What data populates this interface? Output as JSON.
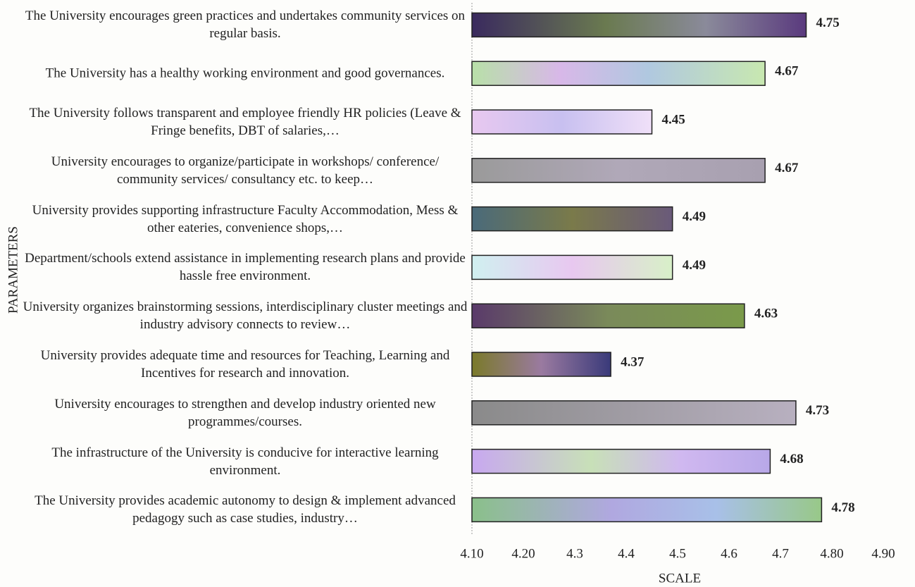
{
  "chart_data": {
    "type": "bar",
    "orientation": "horizontal",
    "x_label": "SCALE",
    "y_label": "PARAMETERS",
    "categories": [
      "The University encourages green practices and undertakes community services on regular basis.",
      "The University has a healthy working environment and good governances.",
      "The University follows transparent and employee friendly HR policies (Leave & Fringe benefits, DBT of salaries,…",
      "University encourages to organize/participate in workshops/ conference/ community services/ consultancy etc. to keep…",
      "University provides supporting infrastructure Faculty Accommodation, Mess & other eateries, convenience shops,…",
      "Department/schools extend assistance in implementing research plans and provide hassle free environment.",
      "University organizes brainstorming sessions, interdisciplinary cluster meetings and industry advisory connects to review…",
      "University provides adequate time and resources for Teaching, Learning and Incentives for research and innovation.",
      "University encourages to strengthen and develop industry oriented new programmes/courses.",
      "The infrastructure of the University is conducive for interactive learning environment.",
      "The University provides academic autonomy to design & implement advanced pedagogy such as case studies, industry…"
    ],
    "values": [
      4.75,
      4.67,
      4.45,
      4.67,
      4.49,
      4.49,
      4.63,
      4.37,
      4.73,
      4.68,
      4.78
    ],
    "xlim": [
      4.1,
      4.9
    ],
    "xticks": [
      {
        "value": 4.1,
        "label": "4.10"
      },
      {
        "value": 4.2,
        "label": "4.20"
      },
      4.3,
      4.4,
      4.5,
      4.6,
      4.7,
      {
        "value": 4.8,
        "label": "4.80"
      },
      {
        "value": 4.9,
        "label": "4.90"
      }
    ],
    "grid": false
  }
}
